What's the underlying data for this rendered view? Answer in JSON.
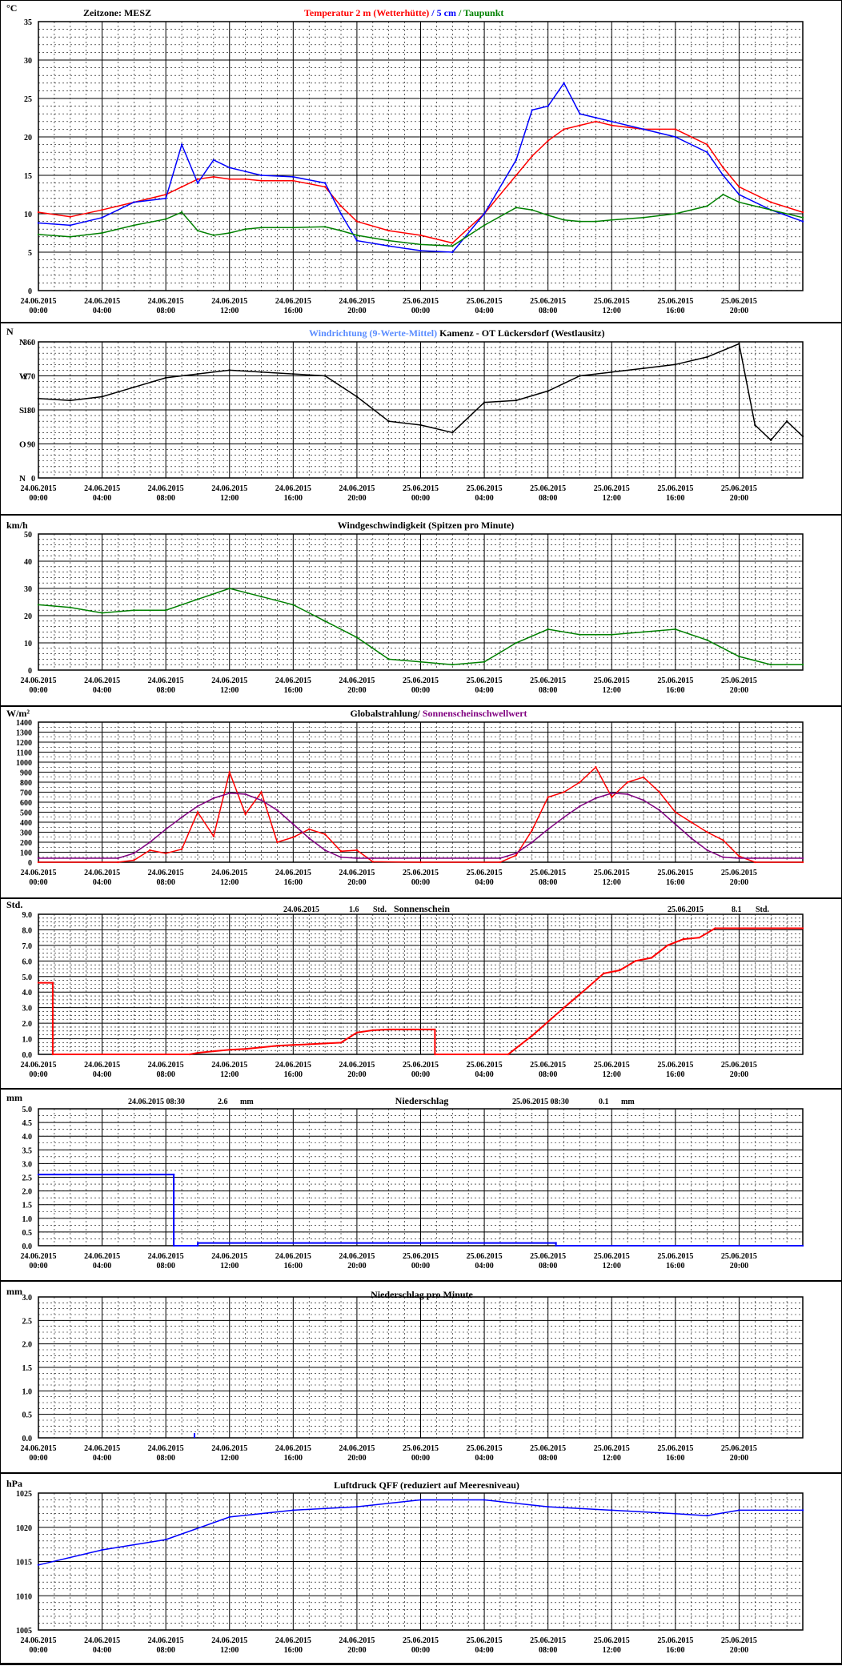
{
  "x_tick_labels": [
    [
      "24.06.2015",
      "00:00"
    ],
    [
      "24.06.2015",
      "04:00"
    ],
    [
      "24.06.2015",
      "08:00"
    ],
    [
      "24.06.2015",
      "12:00"
    ],
    [
      "24.06.2015",
      "16:00"
    ],
    [
      "24.06.2015",
      "20:00"
    ],
    [
      "25.06.2015",
      "00:00"
    ],
    [
      "25.06.2015",
      "04:00"
    ],
    [
      "25.06.2015",
      "08:00"
    ],
    [
      "25.06.2015",
      "12:00"
    ],
    [
      "25.06.2015",
      "16:00"
    ],
    [
      "25.06.2015",
      "20:00"
    ]
  ],
  "colors": {
    "red": "#ff0000",
    "blue": "#0000ff",
    "green": "#008000",
    "lightblue": "#5a8cff",
    "purple": "#800080",
    "black": "#000000"
  },
  "chart_data": [
    {
      "type": "line",
      "unit": "°C",
      "title_left": "Zeitzone: MESZ",
      "title_parts": [
        {
          "text": "Temperatur 2 m (Wetterhütte)",
          "color": "#ff0000"
        },
        {
          "text": "  /  ",
          "color": "#0000ff"
        },
        {
          "text": "5 cm",
          "color": "#0000ff"
        },
        {
          "text": " / ",
          "color": "#008000"
        },
        {
          "text": "Taupunkt",
          "color": "#008000"
        }
      ],
      "ylim": [
        0,
        35
      ],
      "yticks": [
        0,
        5,
        10,
        15,
        20,
        25,
        30,
        35
      ],
      "x_hours": [
        0,
        2,
        4,
        6,
        8,
        9,
        10,
        11,
        12,
        13,
        14,
        16,
        18,
        19,
        20,
        22,
        24,
        26,
        28,
        30,
        31,
        32,
        33,
        34,
        35,
        36,
        38,
        40,
        42,
        43,
        44,
        46,
        48
      ],
      "series": [
        {
          "name": "Temperatur 2 m (Wetterhütte)",
          "color": "#ff0000",
          "values": [
            10.2,
            9.6,
            10.5,
            11.5,
            12.5,
            13.5,
            14.5,
            14.8,
            14.5,
            14.5,
            14.3,
            14.3,
            13.5,
            11,
            9,
            7.8,
            7.2,
            6.2,
            10,
            15,
            17.5,
            19.5,
            21,
            21.5,
            22,
            21.5,
            21,
            21,
            19,
            16,
            13.5,
            11.5,
            10.2
          ]
        },
        {
          "name": "5 cm",
          "color": "#0000ff",
          "values": [
            8.8,
            8.5,
            9.5,
            11.5,
            12,
            19,
            14,
            17,
            16,
            15.5,
            15,
            14.8,
            14,
            10,
            6.5,
            5.8,
            5.2,
            5,
            10,
            17,
            23.5,
            24,
            27,
            23,
            22.5,
            22,
            21,
            20,
            18,
            15,
            12.5,
            10.5,
            9
          ]
        },
        {
          "name": "Taupunkt",
          "color": "#008000",
          "values": [
            7.3,
            7,
            7.5,
            8.5,
            9.3,
            10.2,
            7.8,
            7.2,
            7.5,
            8,
            8.2,
            8.2,
            8.3,
            7.8,
            7.2,
            6.5,
            6,
            5.8,
            8.5,
            10.8,
            10.5,
            9.8,
            9.2,
            9,
            9,
            9.2,
            9.5,
            10,
            11,
            12.5,
            11.5,
            10.5,
            9.5
          ]
        }
      ]
    },
    {
      "type": "line",
      "unit": "N",
      "title_parts": [
        {
          "text": "Windrichtung (9-Werte-Mittel)",
          "color": "#5a8cff"
        },
        {
          "text": "   Kamenz - OT Lückersdorf (Westlausitz)",
          "color": "#000000"
        }
      ],
      "ylim": [
        0,
        360
      ],
      "yticks": [
        0,
        90,
        180,
        270,
        360
      ],
      "ytick_labels": [
        "N",
        "O",
        "S",
        "W",
        "N"
      ],
      "ytick_numbers": [
        "0",
        "90",
        "180",
        "270",
        "360"
      ],
      "x_hours": [
        0,
        2,
        4,
        6,
        8,
        10,
        12,
        14,
        16,
        18,
        20,
        22,
        24,
        26,
        28,
        30,
        32,
        34,
        36,
        38,
        40,
        42,
        44,
        45,
        46,
        47,
        48
      ],
      "series": [
        {
          "name": "Windrichtung (9-Werte-Mittel)",
          "color": "#000000",
          "values": [
            210,
            205,
            215,
            240,
            265,
            275,
            285,
            280,
            275,
            270,
            215,
            150,
            140,
            120,
            200,
            205,
            230,
            270,
            280,
            290,
            300,
            320,
            355,
            140,
            100,
            150,
            110
          ]
        }
      ]
    },
    {
      "type": "line",
      "unit": "km/h",
      "title_parts": [
        {
          "text": "Windgeschwindigkeit (Spitzen pro Minute)",
          "color": "#000000"
        }
      ],
      "ylim": [
        0,
        50
      ],
      "yticks": [
        0,
        10,
        20,
        30,
        40,
        50
      ],
      "x_hours": [
        0,
        2,
        4,
        6,
        8,
        10,
        12,
        14,
        16,
        18,
        20,
        22,
        24,
        26,
        28,
        30,
        32,
        34,
        36,
        38,
        40,
        42,
        44,
        46,
        48
      ],
      "series": [
        {
          "name": "Windgeschwindigkeit",
          "color": "#008000",
          "values": [
            24,
            23,
            21,
            22,
            22,
            26,
            30,
            27,
            24,
            18,
            12,
            4,
            3,
            2,
            3,
            10,
            15,
            13,
            13,
            14,
            15,
            11,
            5,
            2,
            2
          ]
        }
      ]
    },
    {
      "type": "line",
      "unit": "W/m²",
      "title_parts": [
        {
          "text": "Globalstrahlung/ ",
          "color": "#000000"
        },
        {
          "text": "Sonnenscheinschwellwert",
          "color": "#800080"
        }
      ],
      "ylim": [
        0,
        1400
      ],
      "yticks": [
        0,
        100,
        200,
        300,
        400,
        500,
        600,
        700,
        800,
        900,
        1000,
        1100,
        1200,
        1300,
        1400
      ],
      "x_hours": [
        0,
        5,
        6,
        7,
        8,
        9,
        10,
        11,
        12,
        13,
        14,
        15,
        16,
        17,
        18,
        19,
        20,
        21,
        24,
        29,
        30,
        31,
        32,
        33,
        34,
        35,
        36,
        37,
        38,
        39,
        40,
        41,
        42,
        43,
        44,
        45,
        48
      ],
      "series": [
        {
          "name": "Globalstrahlung",
          "color": "#ff0000",
          "values": [
            0,
            0,
            20,
            120,
            90,
            130,
            500,
            260,
            900,
            480,
            700,
            200,
            250,
            330,
            280,
            110,
            120,
            5,
            0,
            0,
            70,
            320,
            650,
            700,
            800,
            950,
            650,
            800,
            850,
            700,
            500,
            400,
            300,
            220,
            60,
            0,
            0
          ]
        },
        {
          "name": "Sonnenscheinschwellwert",
          "color": "#800080",
          "values": [
            40,
            40,
            90,
            200,
            330,
            450,
            560,
            640,
            690,
            680,
            620,
            520,
            380,
            240,
            120,
            50,
            40,
            40,
            40,
            40,
            90,
            200,
            330,
            450,
            560,
            640,
            690,
            680,
            620,
            520,
            380,
            240,
            120,
            50,
            40,
            40,
            40
          ]
        }
      ]
    },
    {
      "type": "line",
      "unit": "Std.",
      "title": "Sonnenschein",
      "day_totals": [
        {
          "date": "24.06.2015",
          "value": "1.6",
          "unit": "Std."
        },
        {
          "date": "25.06.2015",
          "value": "8.1",
          "unit": "Std."
        }
      ],
      "ylim": [
        0,
        9
      ],
      "yticks": [
        "0.0",
        "1.0",
        "2.0",
        "3.0",
        "4.0",
        "5.0",
        "6.0",
        "7.0",
        "8.0",
        "9.0"
      ],
      "x_hours": [
        0,
        0.9,
        0.9,
        9.5,
        10,
        11,
        12,
        13,
        14,
        15,
        16,
        17,
        18,
        19,
        20,
        21,
        22,
        24.9,
        24.9,
        29.5,
        31,
        33,
        34.5,
        35.5,
        36.5,
        37.5,
        38.5,
        39.5,
        40.5,
        41.5,
        42.5,
        48
      ],
      "series": [
        {
          "name": "Sonnenschein",
          "color": "#ff0000",
          "values": [
            4.6,
            4.6,
            0,
            0,
            0.1,
            0.2,
            0.3,
            0.35,
            0.45,
            0.55,
            0.6,
            0.65,
            0.7,
            0.75,
            1.4,
            1.55,
            1.6,
            1.6,
            0,
            0,
            1.2,
            3.0,
            4.3,
            5.2,
            5.4,
            6.0,
            6.2,
            7.0,
            7.4,
            7.5,
            8.1,
            8.1
          ]
        }
      ]
    },
    {
      "type": "line",
      "unit": "mm",
      "title": "Niederschlag",
      "day_totals": [
        {
          "date": "24.06.2015 08:30",
          "value": "2.6",
          "unit": "mm"
        },
        {
          "date": "25.06.2015 08:30",
          "value": "0.1",
          "unit": "mm"
        }
      ],
      "ylim": [
        0,
        5
      ],
      "yticks": [
        "0.0",
        "0.5",
        "1.0",
        "1.5",
        "2.0",
        "2.5",
        "3.0",
        "3.5",
        "4.0",
        "4.5",
        "5.0"
      ],
      "x_hours": [
        0,
        8.5,
        8.5,
        10,
        10.01,
        32.5,
        32.5,
        48
      ],
      "series": [
        {
          "name": "Niederschlag",
          "color": "#0000ff",
          "values": [
            2.6,
            2.6,
            0,
            0,
            0.1,
            0.1,
            0,
            0
          ]
        }
      ]
    },
    {
      "type": "bar",
      "unit": "mm",
      "title": "Niederschlag pro Minute",
      "ylim": [
        0,
        3
      ],
      "yticks": [
        "0.0",
        "0.5",
        "1.0",
        "1.5",
        "2.0",
        "2.5",
        "3.0"
      ],
      "x_hours": [
        9.8
      ],
      "series": [
        {
          "name": "Niederschlag pro Minute",
          "color": "#0000ff",
          "values": [
            0.1
          ]
        }
      ]
    },
    {
      "type": "line",
      "unit": "hPa",
      "title": "Luftdruck QFF (reduziert auf Meeresniveau)",
      "ylim": [
        1005,
        1025
      ],
      "yticks": [
        1005,
        1010,
        1015,
        1020,
        1025
      ],
      "x_hours": [
        0,
        4,
        8,
        12,
        16,
        20,
        24,
        28,
        32,
        36,
        40,
        42,
        44,
        48
      ],
      "series": [
        {
          "name": "Luftdruck QFF",
          "color": "#0000ff",
          "values": [
            1014.5,
            1016.7,
            1018.2,
            1021.5,
            1022.5,
            1023,
            1024,
            1024,
            1023,
            1022.5,
            1022,
            1021.7,
            1022.5,
            1022.5
          ]
        }
      ]
    }
  ]
}
